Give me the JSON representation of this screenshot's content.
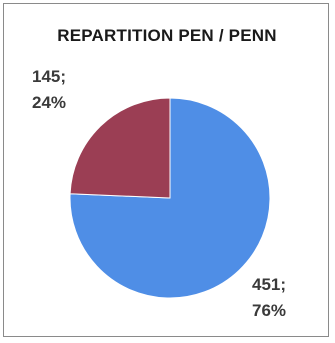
{
  "chart_data": {
    "type": "pie",
    "title": "REPARTITION PEN / PENN",
    "slices": [
      {
        "value": 451,
        "percent_label": "76%",
        "value_label": "451;",
        "color": "#4f8ee6"
      },
      {
        "value": 145,
        "percent_label": "24%",
        "value_label": "145;",
        "color": "#9b3e54"
      }
    ],
    "legend": "none"
  }
}
